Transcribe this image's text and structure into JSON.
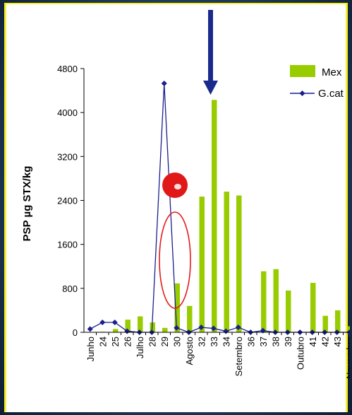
{
  "chart_data": {
    "type": "bar",
    "ylabel": "PSP µg STX/kg",
    "ylim": [
      0,
      4800
    ],
    "yticks": [
      "0",
      "800",
      "1600",
      "2400",
      "3200",
      "4000",
      "4800"
    ],
    "categories": [
      "Junho",
      "24",
      "25",
      "26",
      "Julho",
      "28",
      "29",
      "30",
      "Agosto",
      "32",
      "33",
      "34",
      "Setembro",
      "36",
      "37",
      "38",
      "39",
      "Outubro",
      "41",
      "42",
      "43",
      "Novembro"
    ],
    "series": [
      {
        "name": "Mex",
        "kind": "bar",
        "color": "#99cc00",
        "values": [
          0,
          10,
          60,
          230,
          290,
          180,
          80,
          890,
          480,
          2470,
          4230,
          2560,
          2490,
          10,
          1110,
          1150,
          760,
          0,
          900,
          300,
          400,
          110
        ]
      },
      {
        "name": "G.cat",
        "kind": "line",
        "color": "#1a1f8c",
        "values": [
          60,
          180,
          180,
          20,
          0,
          0,
          4530,
          80,
          0,
          90,
          70,
          20,
          90,
          0,
          30,
          0,
          0,
          0,
          0,
          0,
          0,
          0
        ]
      }
    ],
    "legend": "top-right",
    "grid": false
  },
  "colors": {
    "bar": "#99cc00",
    "line": "#1a1f8c",
    "arrow": "#1a2a8c",
    "ellipse": "#e31b1b",
    "marker": "#e01818",
    "border": "#f5ef2a"
  }
}
